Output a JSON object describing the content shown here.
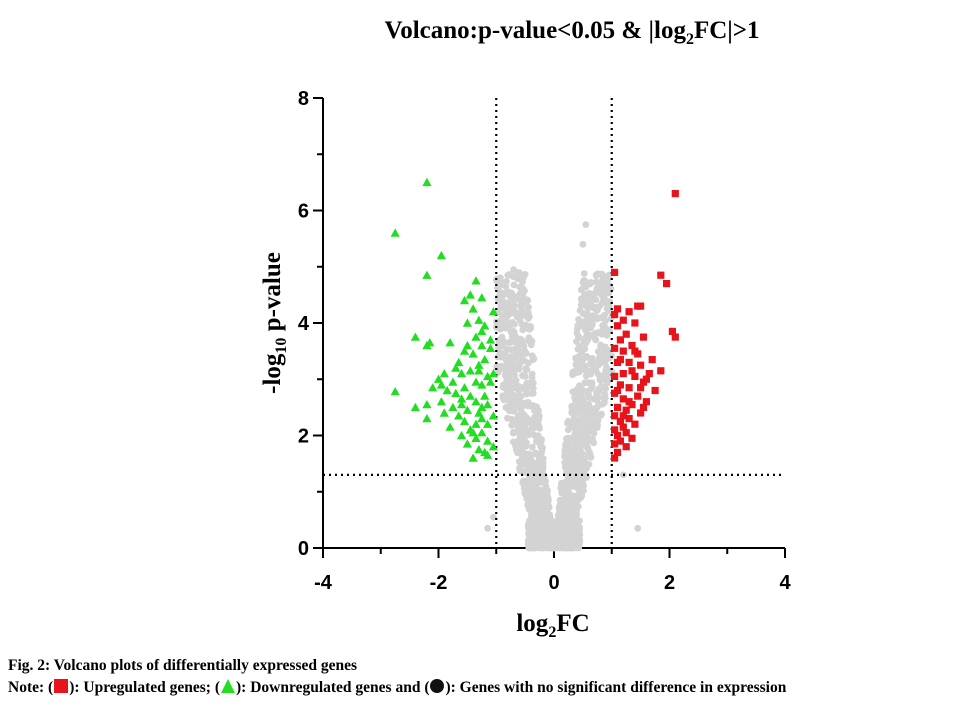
{
  "chart_data": {
    "type": "scatter",
    "title": {
      "prefix": "Volcano:p-value<0.05 & |log",
      "sub": "2",
      "suffix": "FC|>1"
    },
    "xlabel": {
      "prefix": "log",
      "sub": "2",
      "suffix": "FC"
    },
    "ylabel": {
      "prefix": "-log",
      "sub": "10",
      "suffix": " p-value"
    },
    "xlim": [
      -4,
      4
    ],
    "ylim": [
      0,
      8
    ],
    "xticks": [
      "-4",
      "-2",
      "0",
      "2",
      "4"
    ],
    "yticks": [
      "0",
      "2",
      "4",
      "6",
      "8"
    ],
    "thresholds": {
      "fc_lines": [
        -1,
        1
      ],
      "p_line": 1.3
    },
    "grid": false,
    "colors": {
      "up": "#e8141b",
      "down": "#22dd22",
      "ns": "#d3d3d3"
    },
    "series": [
      {
        "marker": "triangle",
        "color": "#22dd22",
        "points": [
          [
            -2.2,
            6.5
          ],
          [
            -2.75,
            5.6
          ],
          [
            -1.95,
            5.2
          ],
          [
            -2.2,
            4.85
          ],
          [
            -1.35,
            4.75
          ],
          [
            -1.45,
            4.5
          ],
          [
            -1.55,
            4.4
          ],
          [
            -1.25,
            4.45
          ],
          [
            -1.4,
            4.25
          ],
          [
            -1.3,
            4.05
          ],
          [
            -1.5,
            4.0
          ],
          [
            -1.2,
            3.95
          ],
          [
            -2.4,
            3.75
          ],
          [
            -2.15,
            3.65
          ],
          [
            -2.2,
            3.6
          ],
          [
            -1.8,
            3.65
          ],
          [
            -1.35,
            3.75
          ],
          [
            -1.25,
            3.6
          ],
          [
            -1.55,
            3.5
          ],
          [
            -1.4,
            3.45
          ],
          [
            -1.2,
            3.35
          ],
          [
            -1.65,
            3.3
          ],
          [
            -1.3,
            3.25
          ],
          [
            -1.9,
            3.1
          ],
          [
            -1.6,
            3.1
          ],
          [
            -1.45,
            3.15
          ],
          [
            -1.15,
            3.05
          ],
          [
            -2.0,
            3.0
          ],
          [
            -1.75,
            2.95
          ],
          [
            -1.35,
            2.95
          ],
          [
            -1.25,
            2.9
          ],
          [
            -2.1,
            2.85
          ],
          [
            -1.55,
            2.85
          ],
          [
            -1.85,
            2.8
          ],
          [
            -2.75,
            2.78
          ],
          [
            -1.7,
            2.75
          ],
          [
            -1.45,
            2.7
          ],
          [
            -1.2,
            2.7
          ],
          [
            -1.6,
            2.65
          ],
          [
            -1.95,
            2.6
          ],
          [
            -1.35,
            2.6
          ],
          [
            -1.15,
            2.55
          ],
          [
            -1.75,
            2.5
          ],
          [
            -1.5,
            2.45
          ],
          [
            -1.3,
            2.4
          ],
          [
            -2.4,
            2.5
          ],
          [
            -2.2,
            2.55
          ],
          [
            -1.9,
            2.4
          ],
          [
            -1.65,
            2.35
          ],
          [
            -1.25,
            2.3
          ],
          [
            -2.2,
            2.3
          ],
          [
            -1.55,
            2.25
          ],
          [
            -1.35,
            2.2
          ],
          [
            -1.15,
            2.2
          ],
          [
            -1.8,
            2.15
          ],
          [
            -1.45,
            2.1
          ],
          [
            -1.25,
            2.05
          ],
          [
            -1.6,
            2.0
          ],
          [
            -1.35,
            1.95
          ],
          [
            -1.15,
            1.9
          ],
          [
            -1.5,
            1.85
          ],
          [
            -1.3,
            1.75
          ],
          [
            -1.2,
            1.7
          ],
          [
            -1.4,
            1.6
          ],
          [
            -1.15,
            1.65
          ],
          [
            -1.05,
            1.8
          ],
          [
            -1.05,
            2.35
          ],
          [
            -1.1,
            3.55
          ],
          [
            -1.05,
            4.2
          ],
          [
            -1.1,
            2.95
          ],
          [
            -1.7,
            3.2
          ],
          [
            -1.5,
            3.6
          ],
          [
            -1.25,
            3.85
          ],
          [
            -1.95,
            2.9
          ],
          [
            -1.6,
            2.55
          ],
          [
            -1.3,
            3.15
          ],
          [
            -1.1,
            3.7
          ],
          [
            -1.4,
            2.05
          ],
          [
            -1.25,
            2.5
          ],
          [
            -1.05,
            3.1
          ]
        ]
      },
      {
        "marker": "square",
        "color": "#e8141b",
        "points": [
          [
            2.1,
            6.3
          ],
          [
            1.85,
            4.85
          ],
          [
            1.95,
            4.7
          ],
          [
            1.05,
            4.9
          ],
          [
            1.45,
            4.3
          ],
          [
            1.5,
            4.3
          ],
          [
            1.1,
            4.25
          ],
          [
            1.3,
            4.2
          ],
          [
            1.05,
            4.15
          ],
          [
            1.2,
            4.05
          ],
          [
            1.4,
            4.0
          ],
          [
            1.1,
            3.95
          ],
          [
            2.05,
            3.85
          ],
          [
            2.1,
            3.75
          ],
          [
            1.25,
            3.8
          ],
          [
            1.55,
            3.75
          ],
          [
            1.15,
            3.7
          ],
          [
            1.35,
            3.6
          ],
          [
            1.05,
            3.55
          ],
          [
            1.2,
            3.5
          ],
          [
            1.45,
            3.45
          ],
          [
            1.7,
            3.35
          ],
          [
            1.1,
            3.3
          ],
          [
            1.3,
            3.3
          ],
          [
            1.5,
            3.25
          ],
          [
            1.85,
            3.15
          ],
          [
            1.65,
            3.1
          ],
          [
            1.2,
            3.1
          ],
          [
            1.05,
            3.05
          ],
          [
            1.4,
            3.05
          ],
          [
            1.55,
            2.95
          ],
          [
            1.15,
            2.9
          ],
          [
            1.3,
            2.85
          ],
          [
            1.75,
            2.8
          ],
          [
            1.05,
            2.75
          ],
          [
            1.45,
            2.7
          ],
          [
            1.2,
            2.65
          ],
          [
            1.6,
            2.6
          ],
          [
            1.35,
            2.55
          ],
          [
            1.1,
            2.5
          ],
          [
            1.25,
            2.45
          ],
          [
            1.5,
            2.4
          ],
          [
            1.05,
            2.35
          ],
          [
            1.3,
            2.3
          ],
          [
            1.15,
            2.25
          ],
          [
            1.4,
            2.2
          ],
          [
            1.2,
            2.15
          ],
          [
            1.05,
            2.1
          ],
          [
            1.25,
            2.05
          ],
          [
            1.1,
            2.0
          ],
          [
            1.35,
            1.95
          ],
          [
            1.15,
            1.9
          ],
          [
            1.05,
            1.85
          ],
          [
            1.25,
            1.8
          ],
          [
            1.1,
            1.7
          ],
          [
            1.05,
            1.6
          ],
          [
            1.3,
            2.6
          ],
          [
            1.6,
            3.0
          ],
          [
            1.4,
            3.5
          ],
          [
            1.15,
            3.35
          ],
          [
            1.5,
            2.85
          ],
          [
            1.2,
            2.35
          ],
          [
            1.1,
            2.8
          ],
          [
            1.35,
            3.15
          ],
          [
            1.55,
            2.5
          ]
        ]
      }
    ]
  },
  "caption": {
    "line1": "Fig. 2: Volcano plots of differentially expressed genes",
    "note_prefix": "Note: (",
    "up_text": "): Upregulated genes; (",
    "down_text": "): Downregulated genes and (",
    "ns_text": "): Genes with no significant difference in expression"
  }
}
